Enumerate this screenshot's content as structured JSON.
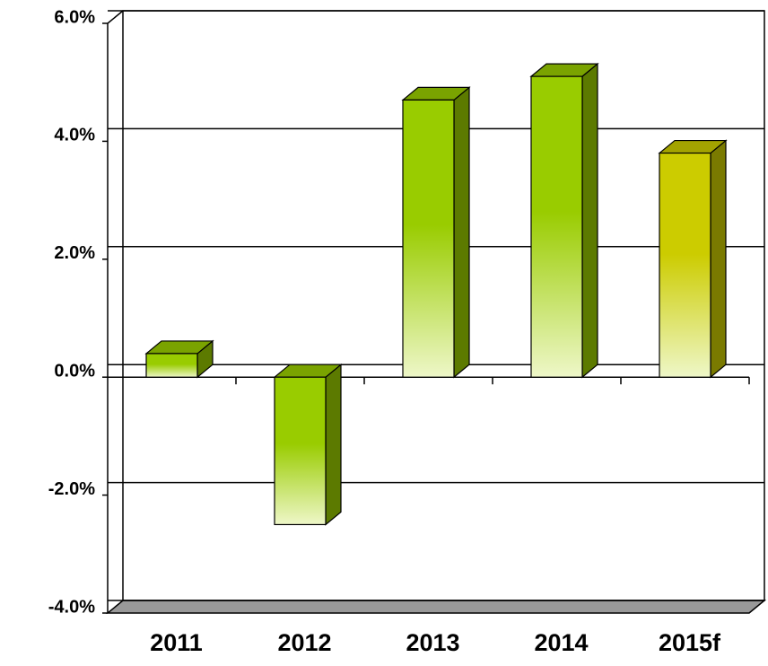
{
  "chart_data": {
    "type": "bar3d",
    "categories": [
      "2011",
      "2012",
      "2013",
      "2014",
      "2015f"
    ],
    "values": [
      0.4,
      -2.5,
      4.7,
      5.1,
      3.8
    ],
    "colors": [
      "#99cc00",
      "#99cc00",
      "#99cc00",
      "#99cc00",
      "#cccc00"
    ],
    "ylim": [
      -4,
      6
    ],
    "yticks": [
      {
        "value": -4,
        "label": "-4.0%"
      },
      {
        "value": -2,
        "label": "-2.0%"
      },
      {
        "value": 0,
        "label": "0.0%"
      },
      {
        "value": 2,
        "label": "2.0%"
      },
      {
        "value": 4,
        "label": "4.0%"
      },
      {
        "value": 6,
        "label": "6.0%"
      }
    ],
    "grid": true
  }
}
